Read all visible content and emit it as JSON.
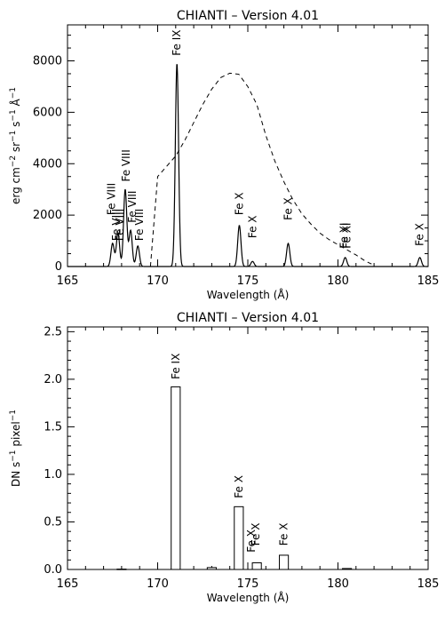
{
  "chart_data": [
    {
      "type": "line",
      "title": "CHIANTI – Version 4.01",
      "xlabel": "Wavelength (Å)",
      "ylabel_parts": [
        "erg cm",
        "−2",
        " sr",
        "−1",
        " s",
        "−1",
        " Å",
        "−1"
      ],
      "xlim": [
        165,
        185
      ],
      "ylim": [
        0,
        9400
      ],
      "xticks": [
        165,
        170,
        175,
        180,
        185
      ],
      "xtick_labels": [
        "165",
        "170",
        "175",
        "180",
        "185"
      ],
      "yticks": [
        0,
        2000,
        4000,
        6000,
        8000
      ],
      "ytick_labels": [
        "0",
        "2000",
        "4000",
        "6000",
        "8000"
      ],
      "grid": false,
      "series": [
        {
          "style": "solid",
          "peaks": [
            {
              "x": 167.5,
              "y": 900
            },
            {
              "x": 167.8,
              "y": 1300
            },
            {
              "x": 168.2,
              "y": 3000
            },
            {
              "x": 168.5,
              "y": 1400
            },
            {
              "x": 168.9,
              "y": 800
            },
            {
              "x": 171.07,
              "y": 7900
            },
            {
              "x": 174.53,
              "y": 1600
            },
            {
              "x": 175.26,
              "y": 200
            },
            {
              "x": 177.24,
              "y": 900
            },
            {
              "x": 180.4,
              "y": 350
            },
            {
              "x": 184.54,
              "y": 350
            }
          ]
        },
        {
          "style": "dashed",
          "x": [
            169.6,
            170.0,
            170.5,
            171.0,
            171.5,
            172.0,
            172.5,
            173.0,
            173.5,
            174.0,
            174.5,
            175.0,
            175.5,
            176.0,
            176.5,
            177.0,
            177.5,
            178.0,
            178.5,
            179.0,
            179.5,
            180.0,
            180.5,
            181.0,
            181.5,
            182.0
          ],
          "y": [
            0,
            3500,
            3900,
            4300,
            4900,
            5600,
            6300,
            6900,
            7350,
            7520,
            7480,
            7000,
            6300,
            5100,
            4100,
            3300,
            2600,
            2050,
            1650,
            1300,
            1050,
            850,
            650,
            450,
            220,
            50
          ]
        }
      ],
      "annotations": [
        {
          "text": "Fe VIII",
          "x": 167.45,
          "y": 2000
        },
        {
          "text": "Fe VIII",
          "x": 167.72,
          "y": 1000
        },
        {
          "text": "Fe VIII",
          "x": 167.9,
          "y": 1000
        },
        {
          "text": "Fe VIII",
          "x": 168.25,
          "y": 3300
        },
        {
          "text": "Fe VIII",
          "x": 168.6,
          "y": 1700
        },
        {
          "text": "Fe VIII",
          "x": 169.0,
          "y": 1000
        },
        {
          "text": "Fe IX",
          "x": 171.07,
          "y": 8200
        },
        {
          "text": "Fe X",
          "x": 174.53,
          "y": 2000
        },
        {
          "text": "Fe X",
          "x": 175.26,
          "y": 1100
        },
        {
          "text": "Fe X",
          "x": 177.24,
          "y": 1800
        },
        {
          "text": "Fe XI",
          "x": 180.35,
          "y": 700
        },
        {
          "text": "Fe XI",
          "x": 180.5,
          "y": 700
        },
        {
          "text": "Fe X",
          "x": 184.54,
          "y": 800
        }
      ]
    },
    {
      "type": "bar",
      "title": "CHIANTI – Version 4.01",
      "xlabel": "Wavelength (Å)",
      "ylabel_parts": [
        "DN s",
        "−1",
        " pixel",
        "−1"
      ],
      "xlim": [
        165,
        185
      ],
      "ylim": [
        0,
        2.55
      ],
      "xticks": [
        165,
        170,
        175,
        180,
        185
      ],
      "xtick_labels": [
        "165",
        "170",
        "175",
        "180",
        "185"
      ],
      "yticks": [
        0.0,
        0.5,
        1.0,
        1.5,
        2.0,
        2.5
      ],
      "ytick_labels": [
        "0.0",
        "0.5",
        "1.0",
        "1.5",
        "2.0",
        "2.5"
      ],
      "grid": false,
      "bar_width": 0.5,
      "bars": [
        {
          "x": 168.0,
          "value": 0.004
        },
        {
          "x": 171.0,
          "value": 1.92
        },
        {
          "x": 173.0,
          "value": 0.02
        },
        {
          "x": 174.5,
          "value": 0.66
        },
        {
          "x": 175.5,
          "value": 0.07
        },
        {
          "x": 177.0,
          "value": 0.15
        },
        {
          "x": 180.5,
          "value": 0.01
        }
      ],
      "annotations": [
        {
          "text": "Fe IX",
          "x": 171.0,
          "y": 2.0
        },
        {
          "text": "Fe X",
          "x": 174.5,
          "y": 0.75
        },
        {
          "text": "Fe X",
          "x": 175.2,
          "y": 0.18
        },
        {
          "text": "Fe X",
          "x": 175.45,
          "y": 0.25
        },
        {
          "text": "Fe X",
          "x": 177.0,
          "y": 0.25
        }
      ]
    }
  ]
}
